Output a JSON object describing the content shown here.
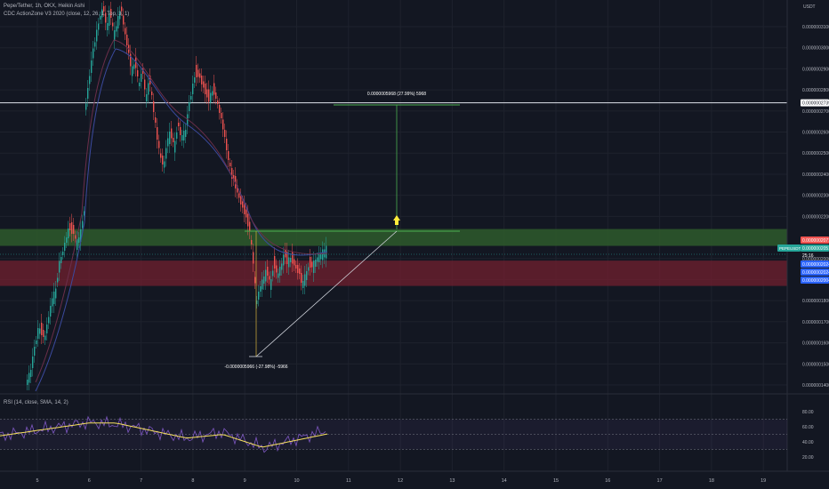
{
  "header": {
    "line1": "Pepe/Tether, 1h, OKX, Heikin Ashi",
    "line2": "CDC ActionZone V3 2020 (close, 12, 26, 1, Top, 3, 1)",
    "rsi": "RSI (14, close, SMA, 14, 2)"
  },
  "scale": {
    "currency": "USDT",
    "ticks": [
      "0.0000003100",
      "0.0000003000",
      "0.0000002900",
      "0.0000002800",
      "0.0000002700",
      "0.0000002600",
      "0.0000002500",
      "0.0000002400",
      "0.0000002300",
      "0.0000002200",
      "0.0000002000",
      "0.0000001900",
      "0.0000001800",
      "0.0000001700",
      "0.0000001600",
      "0.0000001500",
      "0.0000001400"
    ],
    "rsi_ticks": [
      "80.00",
      "60.00",
      "40.00",
      "20.00"
    ],
    "hline_label": "0.0000002739",
    "price_red": "0.0000002071",
    "ticker": "PEPEUSDT",
    "price_green": "0.0000002051",
    "countdown": "25:16",
    "price_blue1": "0.0000002024",
    "price_blue2": "0.0000002024",
    "price_blue3": "0.0000002004"
  },
  "annotations": {
    "up_measure": "0.0000005968 (27.99%) 5968",
    "down_measure": "-0.0000005966 (-27.98%) -5966"
  },
  "colors": {
    "bg": "#131722",
    "up": "#26a69a",
    "down": "#ef5350",
    "green_zone": "#2e5b2c",
    "red_zone": "#6b1f2e",
    "rsi_line": "#7e57c2",
    "rsi_ma": "#f6e05e",
    "measure": "#4caf50"
  },
  "chart_data": {
    "type": "candlestick",
    "x_ticks": [
      "5",
      "6",
      "7",
      "8",
      "9",
      "10",
      "11",
      "12",
      "13",
      "14",
      "15",
      "16",
      "17",
      "18",
      "19"
    ],
    "price_levels": {
      "horizontal_line": 2.739e-07,
      "green_zone": [
        2.14e-07,
        2.06e-07
      ],
      "red_zone": [
        1.99e-07,
        1.87e-07
      ]
    },
    "rsi_range": [
      20,
      80
    ]
  }
}
